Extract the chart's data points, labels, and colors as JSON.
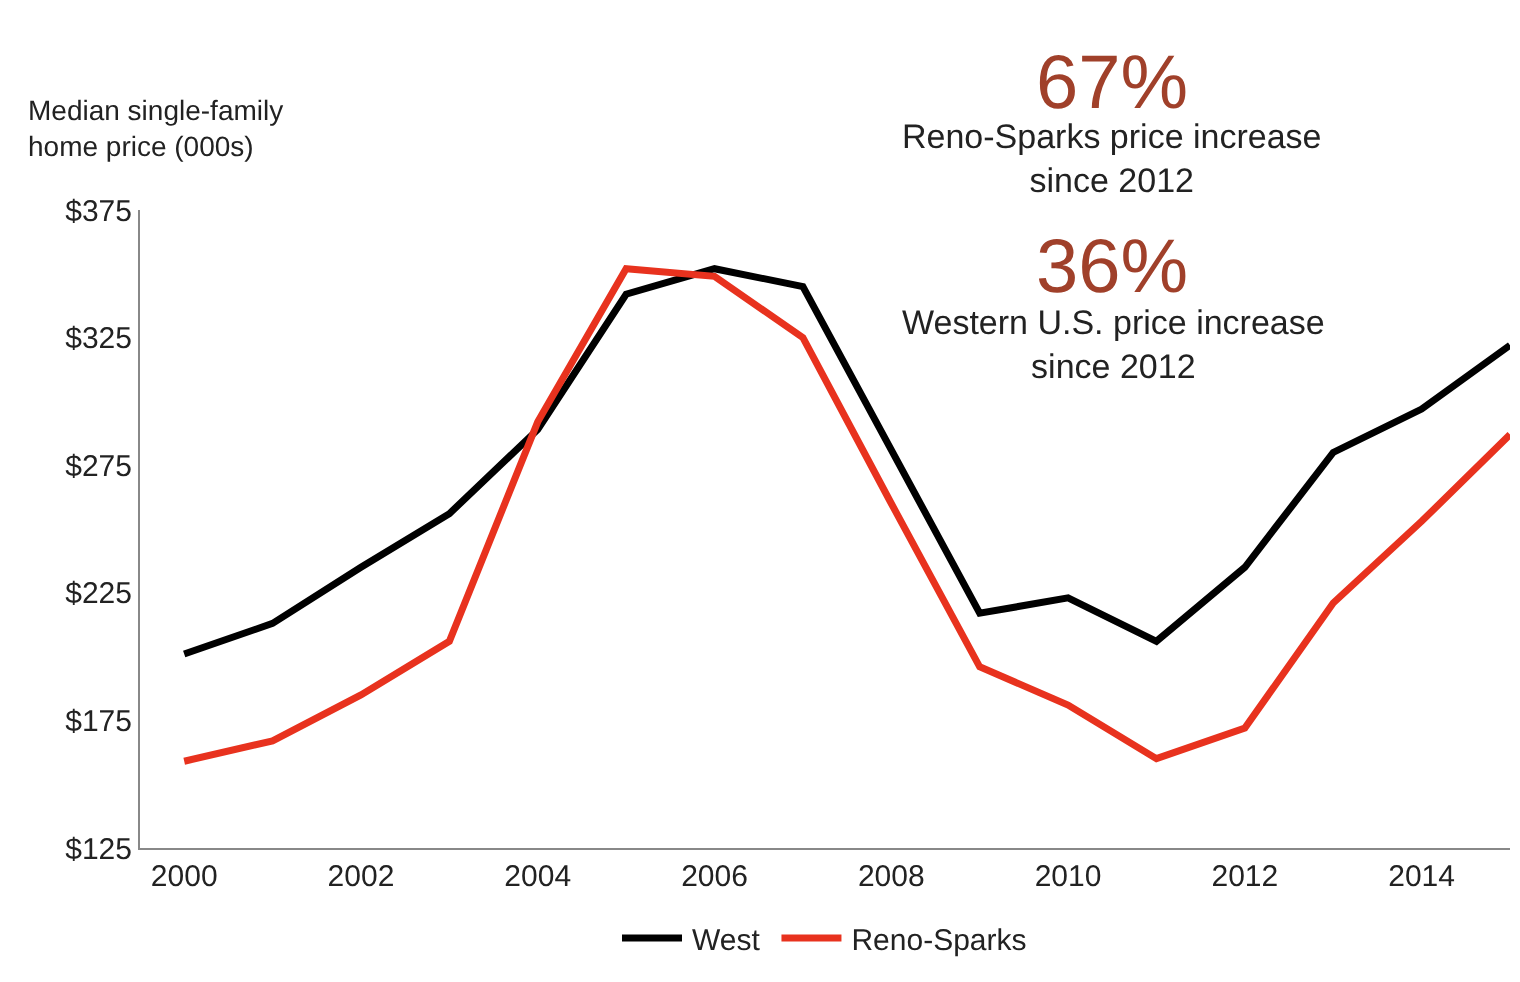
{
  "chart_data": {
    "type": "line",
    "ylabel": "Median single-family\nhome price (000s)",
    "x": [
      2000,
      2001,
      2002,
      2003,
      2004,
      2005,
      2006,
      2007,
      2008,
      2009,
      2010,
      2011,
      2012,
      2013,
      2014,
      2015
    ],
    "series": [
      {
        "name": "West",
        "color": "#000000",
        "values": [
          201,
          213,
          235,
          256,
          289,
          342,
          352,
          345,
          281,
          217,
          223,
          206,
          235,
          280,
          297,
          322
        ]
      },
      {
        "name": "Reno-Sparks",
        "color": "#e8321e",
        "values": [
          159,
          167,
          185,
          206,
          292,
          352,
          349,
          325,
          260,
          196,
          181,
          160,
          172,
          221,
          253,
          287
        ]
      }
    ],
    "xlim": [
      1999.5,
      2015
    ],
    "xticks": [
      2000,
      2002,
      2004,
      2006,
      2008,
      2010,
      2012,
      2014
    ],
    "ylim": [
      125,
      375
    ],
    "yticks": [
      {
        "value": 125,
        "label": "$125"
      },
      {
        "value": 175,
        "label": "$175"
      },
      {
        "value": 225,
        "label": "$225"
      },
      {
        "value": 275,
        "label": "$275"
      },
      {
        "value": 325,
        "label": "$325"
      },
      {
        "value": 375,
        "label": "$375"
      }
    ],
    "annotations": [
      "67%",
      "Reno-Sparks price increase\nsince 2012",
      "36%",
      "Western U.S. price increase\nsince 2012"
    ],
    "grid": false,
    "legend": "bottom",
    "marker": "none",
    "line_style": "solid"
  }
}
